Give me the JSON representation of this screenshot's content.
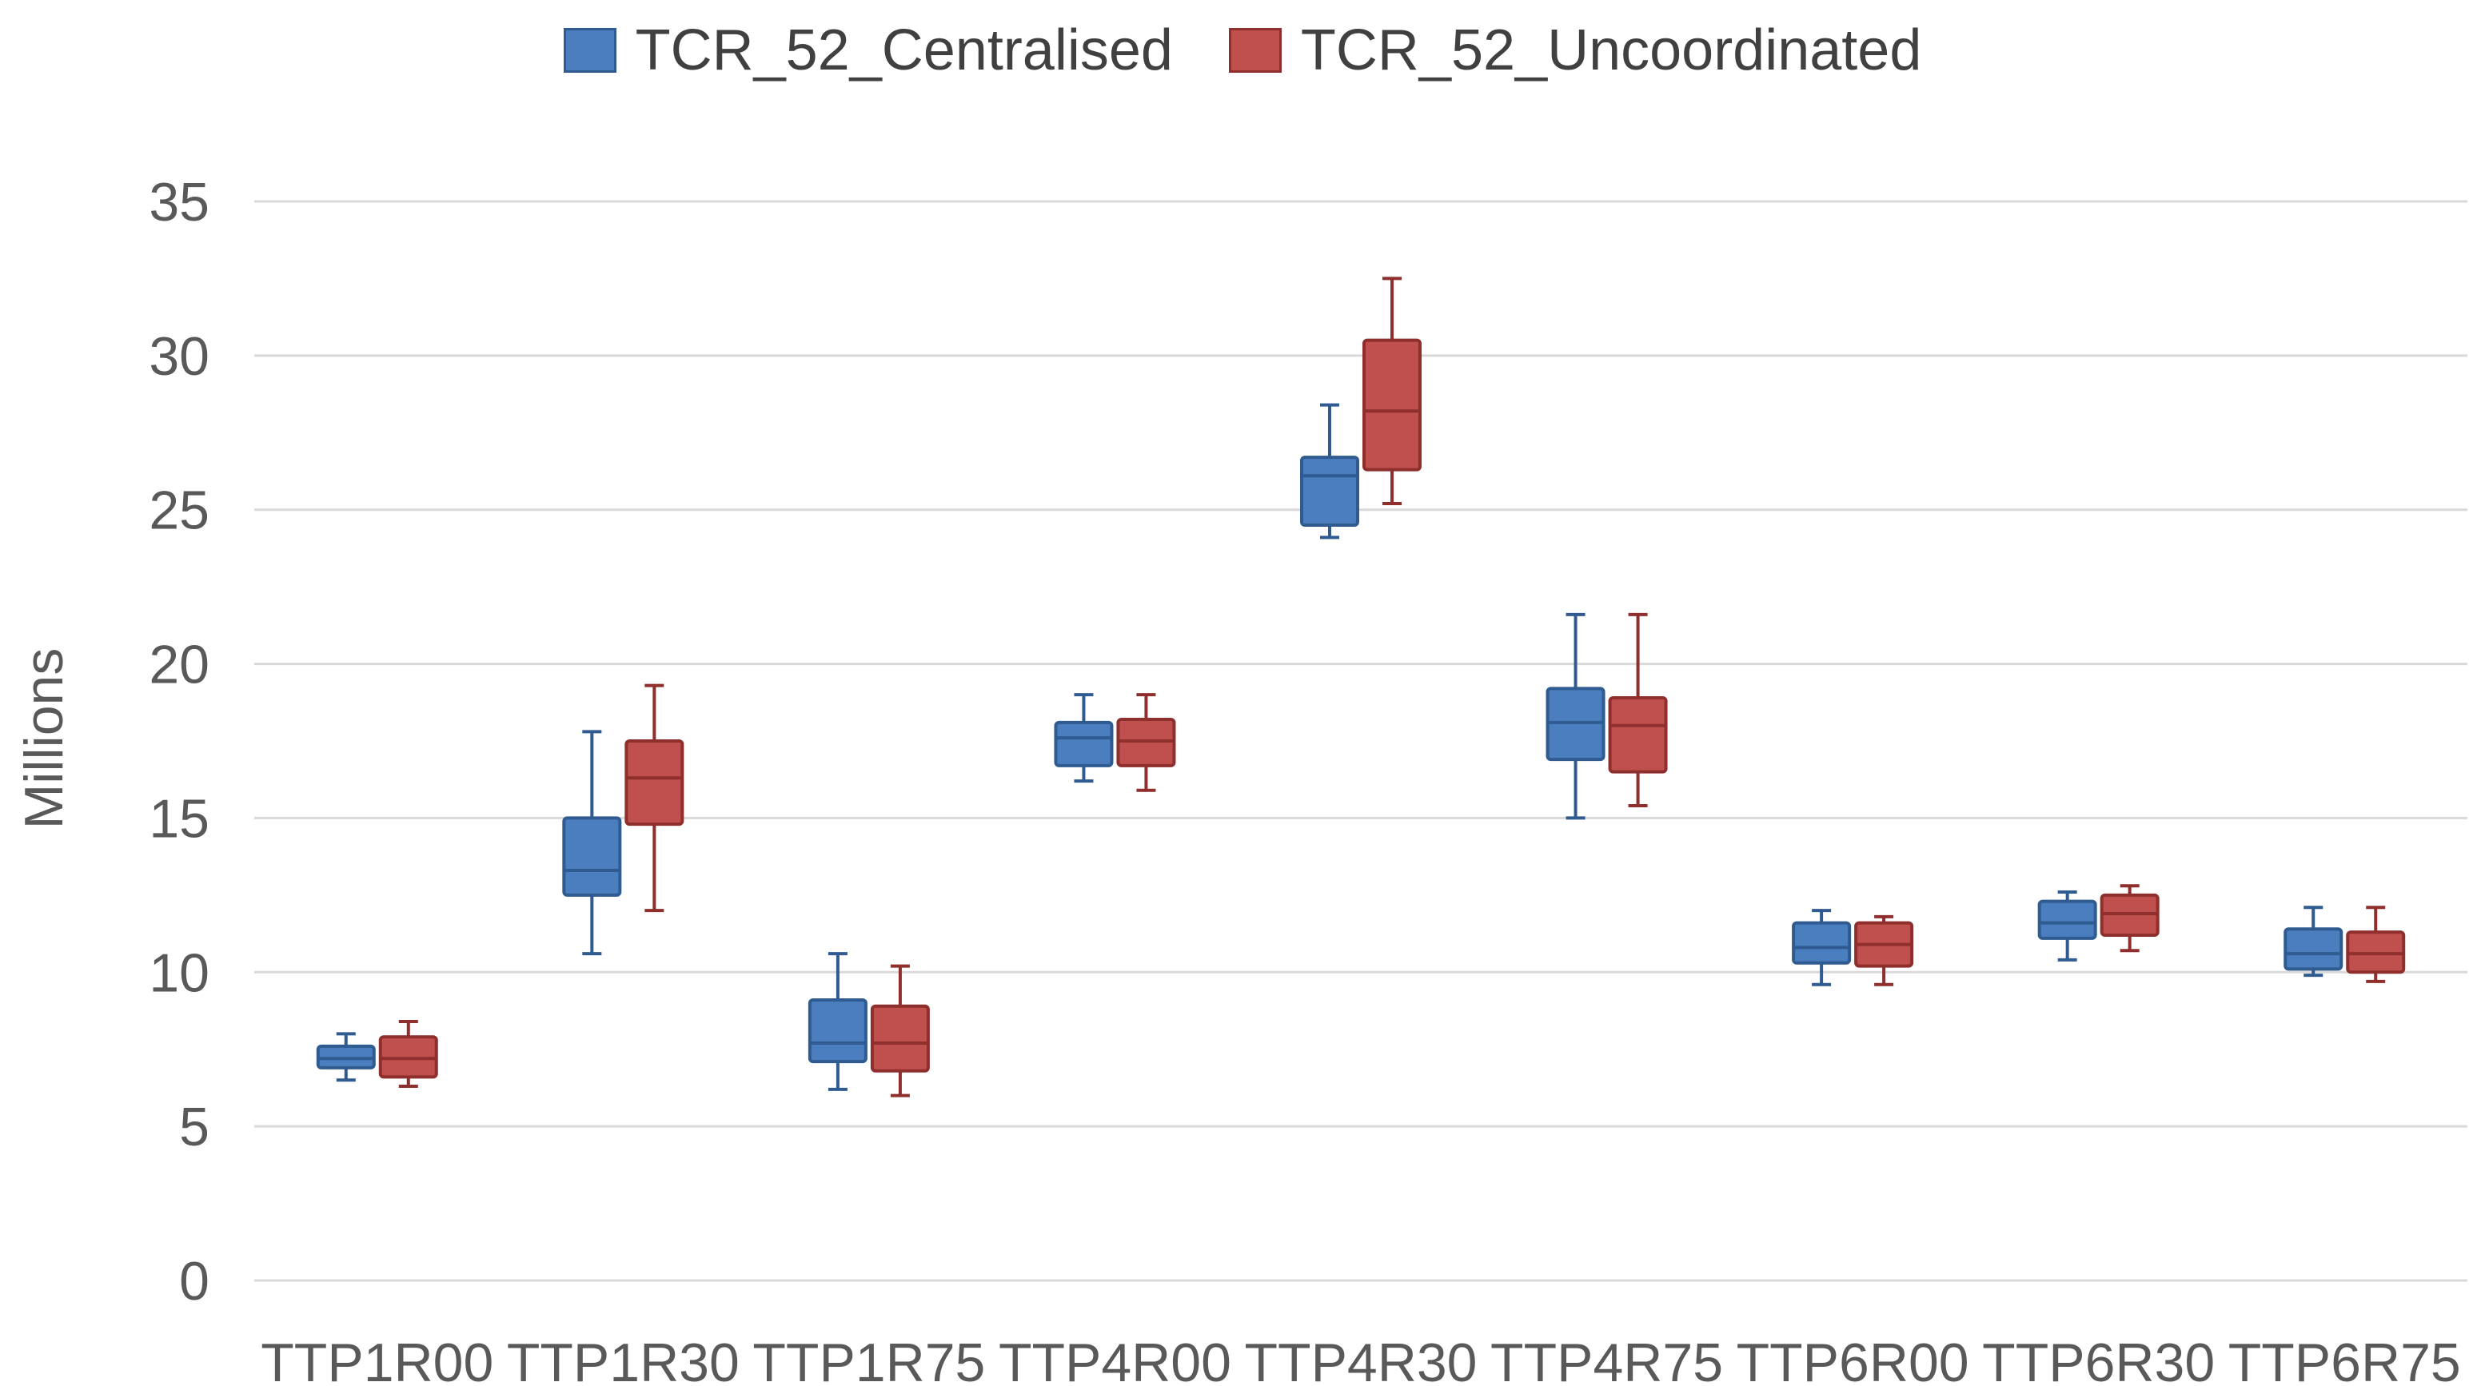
{
  "chart_data": {
    "type": "boxplot",
    "title": "",
    "xlabel": "",
    "ylabel": "Millions",
    "ylim": [
      0,
      35
    ],
    "y_ticks": [
      0,
      5,
      10,
      15,
      20,
      25,
      30,
      35
    ],
    "grid": true,
    "legend_position": "top",
    "categories": [
      "TTP1R00",
      "TTP1R30",
      "TTP1R75",
      "TTP4R00",
      "TTP4R30",
      "TTP4R75",
      "TTP6R00",
      "TTP6R30",
      "TTP6R75"
    ],
    "series": [
      {
        "name": "TCR_52_Centralised",
        "color": "#4a7ebf",
        "border": "#2f5b91",
        "boxes": [
          {
            "min": 6.5,
            "q1": 6.9,
            "median": 7.2,
            "q3": 7.6,
            "max": 8.0
          },
          {
            "min": 10.6,
            "q1": 12.5,
            "median": 13.3,
            "q3": 15.0,
            "max": 17.8
          },
          {
            "min": 6.2,
            "q1": 7.1,
            "median": 7.7,
            "q3": 9.1,
            "max": 10.6
          },
          {
            "min": 16.2,
            "q1": 16.7,
            "median": 17.6,
            "q3": 18.1,
            "max": 19.0
          },
          {
            "min": 24.1,
            "q1": 24.5,
            "median": 26.1,
            "q3": 26.7,
            "max": 28.4
          },
          {
            "min": 15.0,
            "q1": 16.9,
            "median": 18.1,
            "q3": 19.2,
            "max": 21.6
          },
          {
            "min": 9.6,
            "q1": 10.3,
            "median": 10.8,
            "q3": 11.6,
            "max": 12.0
          },
          {
            "min": 10.4,
            "q1": 11.1,
            "median": 11.6,
            "q3": 12.3,
            "max": 12.6
          },
          {
            "min": 9.9,
            "q1": 10.1,
            "median": 10.6,
            "q3": 11.4,
            "max": 12.1
          }
        ]
      },
      {
        "name": "TCR_52_Uncoordinated",
        "color": "#c0504d",
        "border": "#8e2f2d",
        "boxes": [
          {
            "min": 6.3,
            "q1": 6.6,
            "median": 7.2,
            "q3": 7.9,
            "max": 8.4
          },
          {
            "min": 12.0,
            "q1": 14.8,
            "median": 16.3,
            "q3": 17.5,
            "max": 19.3
          },
          {
            "min": 6.0,
            "q1": 6.8,
            "median": 7.7,
            "q3": 8.9,
            "max": 10.2
          },
          {
            "min": 15.9,
            "q1": 16.7,
            "median": 17.5,
            "q3": 18.2,
            "max": 19.0
          },
          {
            "min": 25.2,
            "q1": 26.3,
            "median": 28.2,
            "q3": 30.5,
            "max": 32.5
          },
          {
            "min": 15.4,
            "q1": 16.5,
            "median": 18.0,
            "q3": 18.9,
            "max": 21.6
          },
          {
            "min": 9.6,
            "q1": 10.2,
            "median": 10.9,
            "q3": 11.6,
            "max": 11.8
          },
          {
            "min": 10.7,
            "q1": 11.2,
            "median": 11.9,
            "q3": 12.5,
            "max": 12.8
          },
          {
            "min": 9.7,
            "q1": 10.0,
            "median": 10.6,
            "q3": 11.3,
            "max": 12.1
          }
        ]
      }
    ]
  }
}
